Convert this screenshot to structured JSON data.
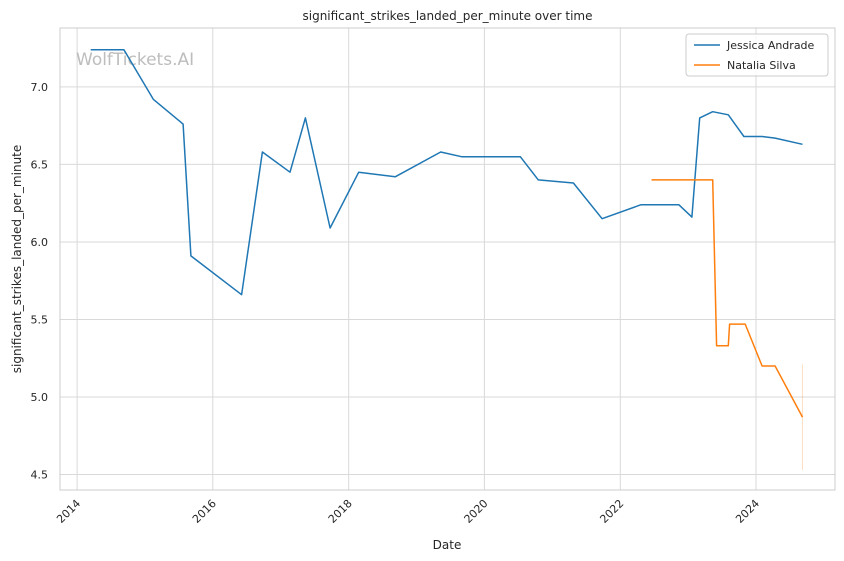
{
  "chart_data": {
    "type": "line",
    "title": "significant_strikes_landed_per_minute over time",
    "xlabel": "Date",
    "ylabel": "significant_strikes_landed_per_minute",
    "xlim": [
      "2013-10-01",
      "2025-03-01"
    ],
    "ylim": [
      4.4,
      7.38
    ],
    "grid": true,
    "legend_position": "top-right",
    "watermark": "WolfTickets.AI",
    "x_ticks": [
      "2014",
      "2016",
      "2018",
      "2020",
      "2022",
      "2024"
    ],
    "y_ticks": [
      "4.5",
      "5.0",
      "5.5",
      "6.0",
      "6.5",
      "7.0"
    ],
    "series": [
      {
        "name": "Jessica Andrade",
        "color": "#1f77b4",
        "points": [
          [
            "2014-03-15",
            7.24
          ],
          [
            "2014-09-10",
            7.24
          ],
          [
            "2015-02-15",
            6.92
          ],
          [
            "2015-07-25",
            6.76
          ],
          [
            "2015-09-05",
            5.91
          ],
          [
            "2016-06-04",
            5.66
          ],
          [
            "2016-09-24",
            6.58
          ],
          [
            "2017-02-19",
            6.45
          ],
          [
            "2017-05-13",
            6.8
          ],
          [
            "2017-09-23",
            6.09
          ],
          [
            "2018-02-24",
            6.45
          ],
          [
            "2018-09-08",
            6.42
          ],
          [
            "2019-05-11",
            6.58
          ],
          [
            "2019-08-31",
            6.55
          ],
          [
            "2020-07-12",
            6.55
          ],
          [
            "2020-10-17",
            6.4
          ],
          [
            "2021-04-24",
            6.38
          ],
          [
            "2021-09-25",
            6.15
          ],
          [
            "2022-04-23",
            6.24
          ],
          [
            "2022-11-12",
            6.24
          ],
          [
            "2023-01-21",
            6.16
          ],
          [
            "2023-03-04",
            6.8
          ],
          [
            "2023-05-13",
            6.84
          ],
          [
            "2023-08-05",
            6.82
          ],
          [
            "2023-10-28",
            6.68
          ],
          [
            "2024-02-03",
            6.68
          ],
          [
            "2024-04-13",
            6.67
          ],
          [
            "2024-09-07",
            6.63
          ]
        ]
      },
      {
        "name": "Natalia Silva",
        "color": "#ff7f0e",
        "points": [
          [
            "2022-06-18",
            6.4
          ],
          [
            "2023-05-13",
            6.4
          ],
          [
            "2023-06-03",
            5.33
          ],
          [
            "2023-08-05",
            5.33
          ],
          [
            "2023-08-12",
            5.47
          ],
          [
            "2023-11-04",
            5.47
          ],
          [
            "2024-02-03",
            5.2
          ],
          [
            "2024-04-13",
            5.2
          ],
          [
            "2024-09-07",
            4.87
          ]
        ],
        "error_band": {
          "x": "2024-09-07",
          "low": 4.53,
          "high": 5.21
        }
      }
    ]
  }
}
